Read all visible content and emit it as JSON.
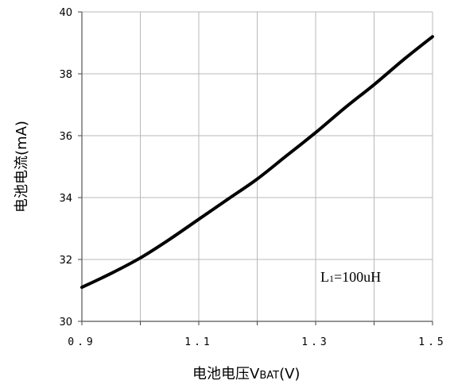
{
  "chart_data": {
    "type": "line",
    "title": "",
    "xlabel_main": "电池电压V",
    "xlabel_sub": "BAT",
    "xlabel_unit": "(V)",
    "ylabel": "电池电流(mA)",
    "xlim": [
      0.9,
      1.5
    ],
    "ylim": [
      30,
      40
    ],
    "grid": true,
    "x_ticks": [
      0.9,
      1.0,
      1.1,
      1.2,
      1.3,
      1.4,
      1.5
    ],
    "x_tick_labels": [
      "0.9",
      "",
      "1.1",
      "",
      "1.3",
      "",
      "1.5"
    ],
    "y_ticks": [
      30,
      32,
      34,
      36,
      38,
      40
    ],
    "y_tick_labels": [
      "30",
      "32",
      "34",
      "36",
      "38",
      "40"
    ],
    "annotation_main": "L",
    "annotation_sub": "1",
    "annotation_rest": "=100uH",
    "series": [
      {
        "x": [
          0.9,
          0.95,
          1.0,
          1.05,
          1.1,
          1.15,
          1.2,
          1.25,
          1.3,
          1.35,
          1.4,
          1.45,
          1.5
        ],
        "y": [
          31.1,
          31.55,
          32.05,
          32.65,
          33.3,
          33.95,
          34.6,
          35.35,
          36.1,
          36.9,
          37.65,
          38.45,
          39.2
        ],
        "color": "#000000"
      }
    ]
  }
}
